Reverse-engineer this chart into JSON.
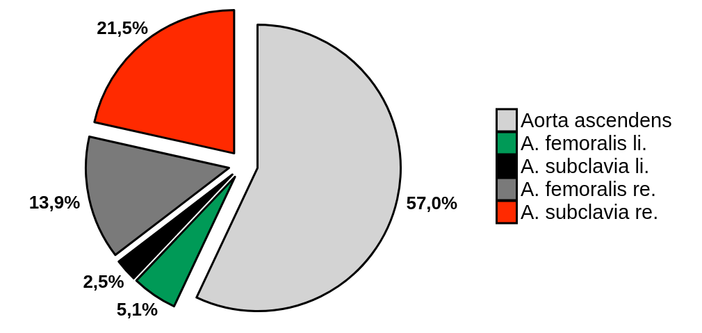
{
  "chart_data": {
    "type": "pie",
    "categories": [
      "Aorta ascendens",
      "A. femoralis li.",
      "A. subclavia li.",
      "A. femoralis re.",
      "A. subclavia re."
    ],
    "values": [
      57.0,
      5.1,
      2.5,
      13.9,
      21.5
    ],
    "colors": [
      "#d3d3d3",
      "#009a57",
      "#000000",
      "#7a7a7a",
      "#ff2a00"
    ],
    "value_labels": [
      "57,0%",
      "5,1%",
      "2,5%",
      "13,9%",
      "21,5%"
    ],
    "legend": "right"
  }
}
